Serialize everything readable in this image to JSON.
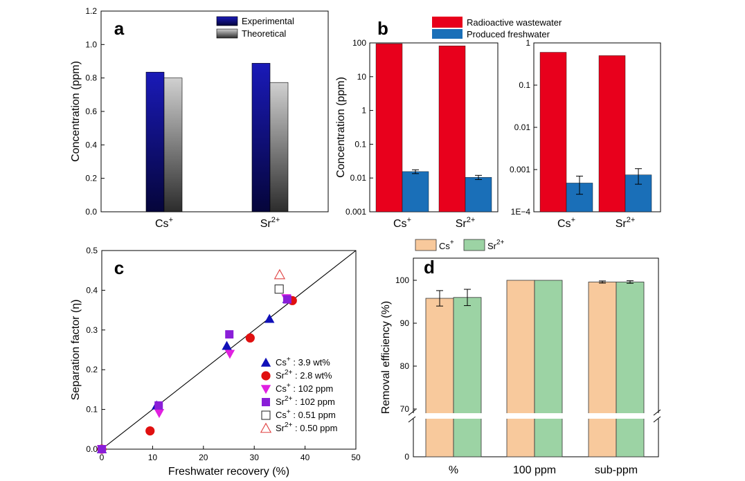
{
  "chart_data": [
    {
      "id": "a",
      "type": "bar",
      "panel_label": "a",
      "categories": [
        "Cs",
        "Sr"
      ],
      "category_superscripts": [
        "+",
        "2+"
      ],
      "series": [
        {
          "name": "Experimental",
          "values": [
            0.835,
            0.888
          ]
        },
        {
          "name": "Theoretical",
          "values": [
            0.8,
            0.773
          ]
        }
      ],
      "ylabel": "Concentration (ppm)",
      "ylim": [
        0,
        1.2
      ],
      "yticks": [
        "0.0",
        "0.2",
        "0.4",
        "0.6",
        "0.8",
        "1.0",
        "1.2"
      ],
      "legend_position": "top-right"
    },
    {
      "id": "b-left",
      "type": "bar",
      "panel_label": "b",
      "scale": "log",
      "categories": [
        "Cs",
        "Sr"
      ],
      "category_superscripts": [
        "+",
        "2+"
      ],
      "series": [
        {
          "name": "Radioactive wastewater",
          "values": [
            95,
            82
          ]
        },
        {
          "name": "Produced freshwater",
          "values": [
            0.0155,
            0.0105
          ],
          "errors": [
            0.002,
            0.0015
          ]
        }
      ],
      "ylabel": "Concentration (ppm)",
      "ylim": [
        0.001,
        100
      ],
      "yticks": [
        "0.001",
        "0.01",
        "0.1",
        "1",
        "10",
        "100"
      ],
      "legend_position": "top"
    },
    {
      "id": "b-right",
      "type": "bar",
      "scale": "log",
      "categories": [
        "Cs",
        "Sr"
      ],
      "category_superscripts": [
        "+",
        "2+"
      ],
      "series": [
        {
          "name": "Radioactive wastewater",
          "values": [
            0.6,
            0.5
          ]
        },
        {
          "name": "Produced freshwater",
          "values": [
            0.00048,
            0.00075
          ],
          "errors": [
            0.00022,
            0.0003
          ]
        }
      ],
      "ylim": [
        0.0001,
        1
      ],
      "yticks": [
        "1E−4",
        "0.001",
        "0.01",
        "0.1",
        "1"
      ]
    },
    {
      "id": "c",
      "type": "scatter",
      "panel_label": "c",
      "xlabel": "Freshwater recovery (%)",
      "ylabel": "Separation factor (η)",
      "xlim": [
        0,
        50
      ],
      "ylim": [
        0,
        0.5
      ],
      "xticks": [
        "0",
        "10",
        "20",
        "30",
        "40",
        "50"
      ],
      "yticks": [
        "0.0",
        "0.1",
        "0.2",
        "0.3",
        "0.4",
        "0.5"
      ],
      "fit_line": {
        "x": [
          0,
          50
        ],
        "y": [
          0,
          0.5
        ]
      },
      "series": [
        {
          "name": "Cs+ : 3.9 wt%",
          "ion": "Cs",
          "sup": "+",
          "label": " : 3.9 wt%",
          "marker": "triangle-up",
          "color": "#1010b8",
          "filled": true,
          "points": [
            [
              0,
              0
            ],
            [
              10.8,
              0.11
            ],
            [
              24.6,
              0.26
            ],
            [
              33.0,
              0.328
            ],
            [
              36.5,
              0.378
            ]
          ]
        },
        {
          "name": "Sr2+ : 2.8 wt%",
          "ion": "Sr",
          "sup": "2+",
          "label": " : 2.8 wt%",
          "marker": "circle",
          "color": "#e01010",
          "filled": true,
          "points": [
            [
              0,
              0
            ],
            [
              9.5,
              0.046
            ],
            [
              29.2,
              0.28
            ],
            [
              37.5,
              0.374
            ]
          ]
        },
        {
          "name": "Cs+ : 102 ppm",
          "ion": "Cs",
          "sup": "+",
          "label": " : 102 ppm",
          "marker": "triangle-down",
          "color": "#e020e0",
          "filled": true,
          "points": [
            [
              0,
              0
            ],
            [
              11.3,
              0.091
            ],
            [
              25.2,
              0.24
            ],
            [
              36.3,
              0.38
            ]
          ]
        },
        {
          "name": "Sr2+ : 102 ppm",
          "ion": "Sr",
          "sup": "2+",
          "label": " : 102 ppm",
          "marker": "square",
          "color": "#8a1ed8",
          "filled": true,
          "points": [
            [
              0,
              0
            ],
            [
              11.2,
              0.11
            ],
            [
              25.1,
              0.289
            ],
            [
              36.5,
              0.377
            ]
          ]
        },
        {
          "name": "Cs+ : 0.51 ppm",
          "ion": "Cs",
          "sup": "+",
          "label": " : 0.51 ppm",
          "marker": "square",
          "color": "#333333",
          "filled": false,
          "points": [
            [
              34.9,
              0.403
            ]
          ]
        },
        {
          "name": "Sr2+ : 0.50 ppm",
          "ion": "Sr",
          "sup": "2+",
          "label": " : 0.50 ppm",
          "marker": "triangle-up",
          "color": "#e04040",
          "filled": false,
          "points": [
            [
              35.0,
              0.439
            ]
          ]
        }
      ],
      "legend_position": "bottom-right"
    },
    {
      "id": "d",
      "type": "bar",
      "panel_label": "d",
      "categories": [
        "%",
        "100 ppm",
        "sub-ppm"
      ],
      "series": [
        {
          "name": "Cs+",
          "ion": "Cs",
          "sup": "+",
          "values": [
            95.8,
            100,
            99.6
          ],
          "errors": [
            1.8,
            0,
            0.25
          ]
        },
        {
          "name": "Sr2+",
          "ion": "Sr",
          "sup": "2+",
          "values": [
            96.0,
            100,
            99.6
          ],
          "errors": [
            1.9,
            0,
            0.3
          ]
        }
      ],
      "ylabel": "Removal efficiency (%)",
      "ylim": [
        0,
        100
      ],
      "axis_break": [
        5,
        68
      ],
      "yticks": [
        "0",
        "70",
        "80",
        "90",
        "100"
      ],
      "legend_position": "top"
    }
  ],
  "colors": {
    "experimental": "#1414a0",
    "theoretical": "#b4b4b4",
    "radioactive": "#e8001c",
    "freshwater": "#1a6fb8",
    "cs_bar": "#f8c99c",
    "sr_bar": "#9cd3a4"
  }
}
